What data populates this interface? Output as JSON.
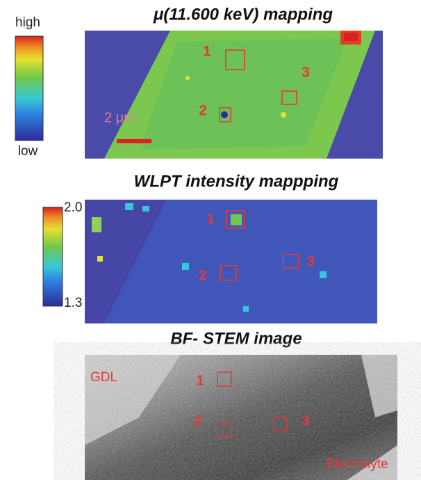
{
  "panels": [
    {
      "title": "μ(11.600 keV) mapping",
      "colorbar": {
        "top": "high",
        "bottom": "low"
      },
      "scale_bar": "2 μm",
      "regions": [
        "1",
        "2",
        "3"
      ]
    },
    {
      "title": "WLPT intensity mappping",
      "colorbar": {
        "top": "2.0",
        "bottom": "1.3"
      },
      "regions": [
        "1",
        "2",
        "3"
      ]
    },
    {
      "title": "BF- STEM image",
      "labels": [
        "GDL",
        "Electrolyte"
      ],
      "regions": [
        "1",
        "2",
        "3"
      ]
    }
  ]
}
